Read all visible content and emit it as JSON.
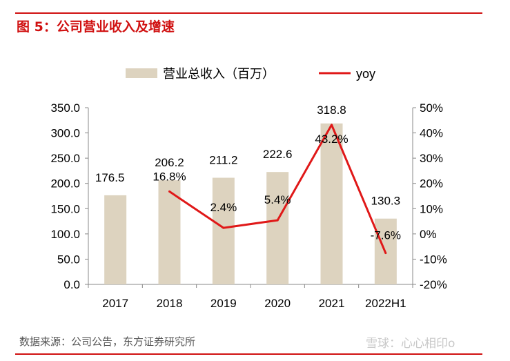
{
  "header": {
    "title": "图 5：公司营业收入及增速"
  },
  "footer": {
    "source": "数据来源：公司公告，东方证券研究所",
    "watermark": "雪球：心心相印o"
  },
  "colors": {
    "bar": "#ddd3bf",
    "line": "#e01818",
    "accent": "#d01010"
  },
  "chart_data": {
    "type": "bar",
    "categories": [
      "2017",
      "2018",
      "2019",
      "2020",
      "2021",
      "2022H1"
    ],
    "series": [
      {
        "name": "营业总收入（百万）",
        "type": "bar",
        "axis": "left",
        "values": [
          176.5,
          206.2,
          211.2,
          222.6,
          318.8,
          130.3
        ],
        "labels": [
          "176.5",
          "206.2",
          "211.2",
          "222.6",
          "318.8",
          "130.3"
        ]
      },
      {
        "name": "yoy",
        "type": "line",
        "axis": "right",
        "values": [
          null,
          16.8,
          2.4,
          5.4,
          43.2,
          -7.6
        ],
        "labels": [
          "",
          "16.8%",
          "2.4%",
          "5.4%",
          "43.2%",
          "-7.6%"
        ]
      }
    ],
    "y_left": {
      "min": 0,
      "max": 350,
      "step": 50,
      "ticks": [
        "0.0",
        "50.0",
        "100.0",
        "150.0",
        "200.0",
        "250.0",
        "300.0",
        "350.0"
      ]
    },
    "y_right": {
      "min": -20,
      "max": 50,
      "step": 10,
      "ticks": [
        "-20%",
        "-10%",
        "0%",
        "10%",
        "20%",
        "30%",
        "40%",
        "50%"
      ]
    },
    "legend": {
      "position": "top"
    },
    "grid": false
  }
}
